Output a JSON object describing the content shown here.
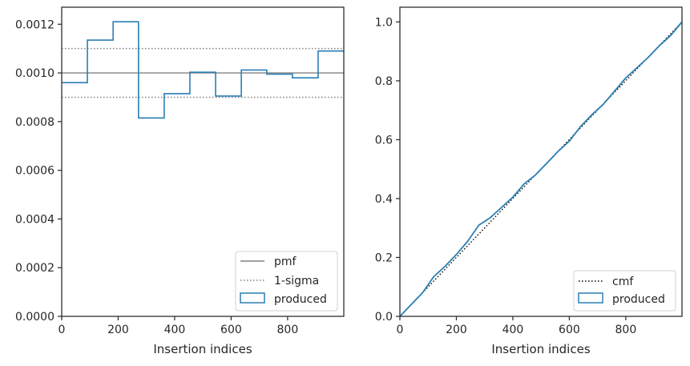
{
  "chart_data": [
    {
      "type": "step",
      "xlabel": "Insertion indices",
      "ylabel": "",
      "xlim": [
        0,
        999
      ],
      "ylim": [
        0,
        0.00127
      ],
      "xticks": [
        0,
        200,
        400,
        600,
        800
      ],
      "yticks": [
        0.0,
        0.0002,
        0.0004,
        0.0006,
        0.0008,
        0.001,
        0.0012
      ],
      "xtick_labels": [
        "0",
        "200",
        "400",
        "600",
        "800"
      ],
      "ytick_labels": [
        "0.0000",
        "0.0002",
        "0.0004",
        "0.0006",
        "0.0008",
        "0.0010",
        "0.0012"
      ],
      "legend_position": "lower-right",
      "pmf": {
        "name": "pmf",
        "value": 0.001,
        "color": "#808080"
      },
      "sigma": {
        "name": "1-sigma",
        "upper": 0.0011,
        "lower": 0.0009,
        "color": "#808080"
      },
      "produced": {
        "name": "produced",
        "color": "#2a7fb5",
        "bin_edges": [
          0,
          91,
          182,
          272,
          363,
          454,
          545,
          636,
          726,
          817,
          908,
          999
        ],
        "values": [
          0.00096,
          0.001135,
          0.00121,
          0.000815,
          0.000915,
          0.001003,
          0.000905,
          0.001012,
          0.000995,
          0.00098,
          0.00109
        ]
      }
    },
    {
      "type": "line",
      "xlabel": "Insertion indices",
      "ylabel": "",
      "xlim": [
        0,
        999
      ],
      "ylim": [
        0,
        1.05
      ],
      "xticks": [
        0,
        200,
        400,
        600,
        800
      ],
      "yticks": [
        0.0,
        0.2,
        0.4,
        0.6,
        0.8,
        1.0
      ],
      "xtick_labels": [
        "0",
        "200",
        "400",
        "600",
        "800"
      ],
      "ytick_labels": [
        "0.0",
        "0.2",
        "0.4",
        "0.6",
        "0.8",
        "1.0"
      ],
      "legend_position": "lower-right",
      "cmf": {
        "name": "cmf",
        "color": "#000000",
        "x": [
          0,
          999
        ],
        "y": [
          0,
          1
        ]
      },
      "produced": {
        "name": "produced",
        "color": "#2a7fb5",
        "x": [
          0,
          40,
          80,
          120,
          160,
          200,
          240,
          280,
          320,
          360,
          400,
          440,
          480,
          520,
          560,
          600,
          640,
          680,
          720,
          760,
          800,
          840,
          880,
          920,
          960,
          999
        ],
        "y": [
          0,
          0.04,
          0.08,
          0.135,
          0.17,
          0.21,
          0.255,
          0.31,
          0.335,
          0.37,
          0.405,
          0.45,
          0.48,
          0.52,
          0.56,
          0.595,
          0.645,
          0.685,
          0.72,
          0.765,
          0.81,
          0.845,
          0.88,
          0.92,
          0.955,
          1.0
        ]
      }
    }
  ]
}
